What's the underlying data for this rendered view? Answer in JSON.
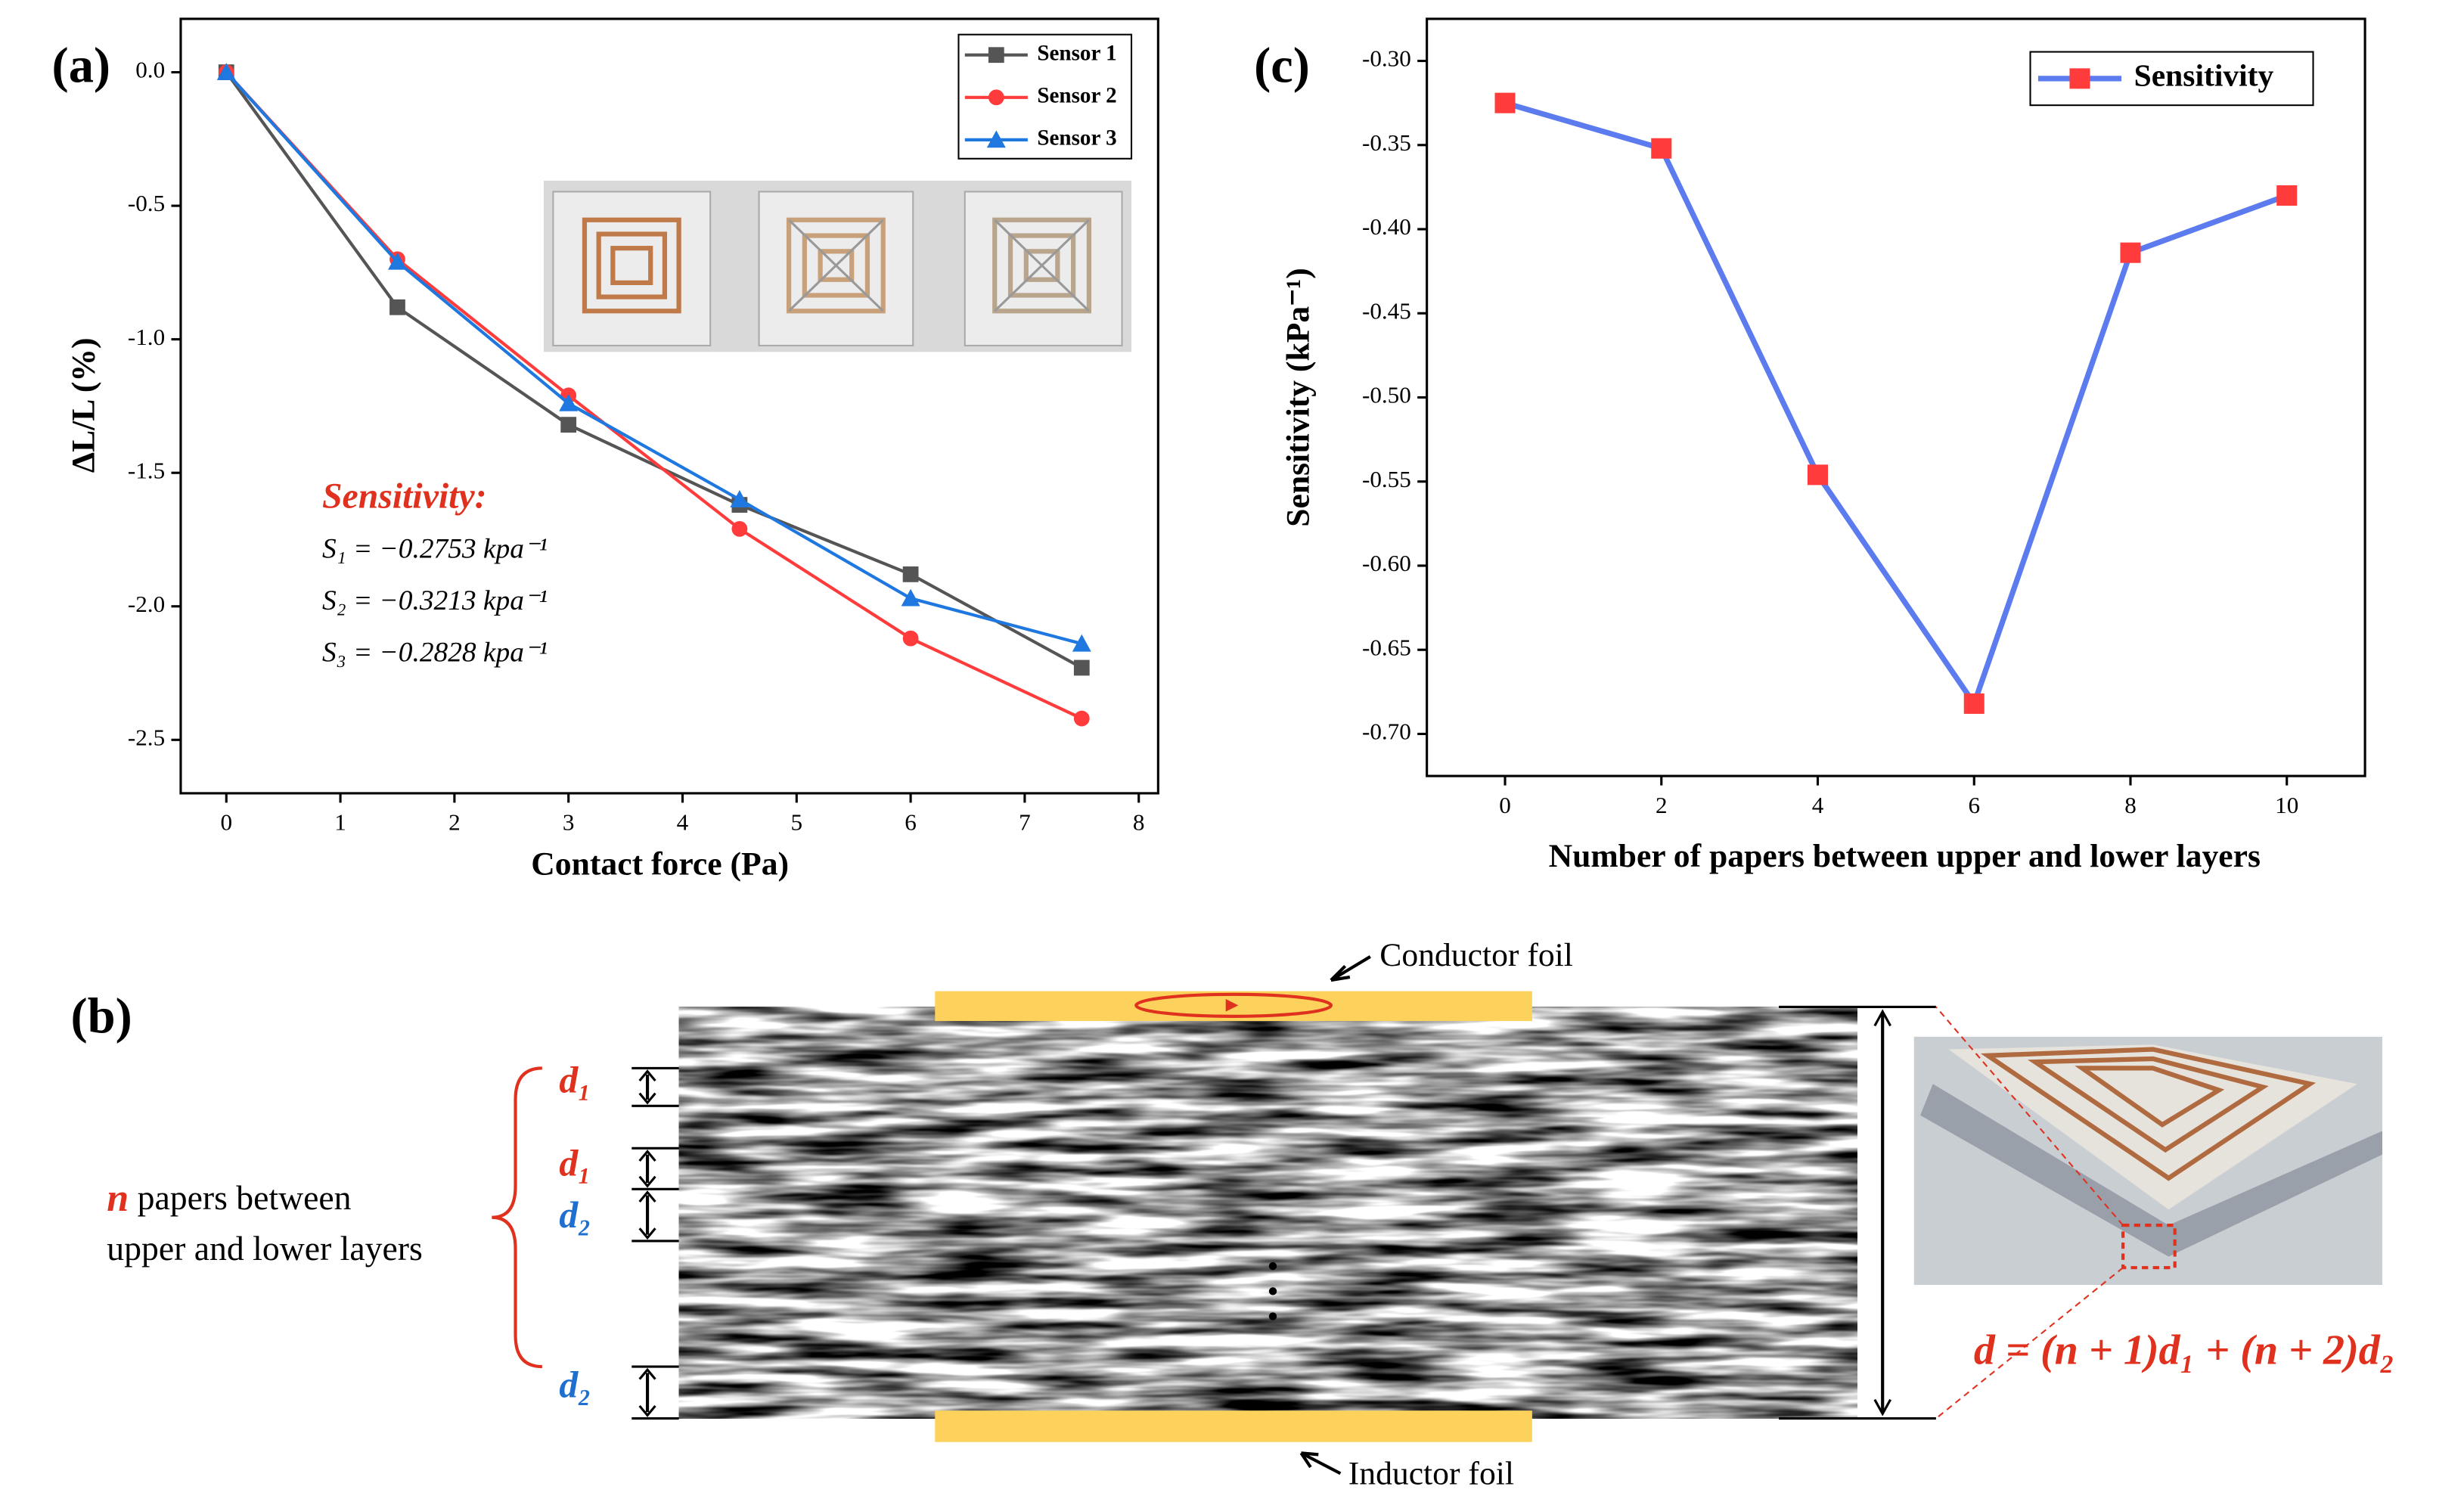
{
  "chart_data": [
    {
      "type": "line",
      "panel_label": "(a)",
      "x_label": "Contact force (Pa)",
      "y_label": "ΔL/L (%)",
      "x": [
        0,
        1.5,
        3,
        4.5,
        6,
        7.5
      ],
      "xlim": [
        -0.4,
        8.17
      ],
      "xticks": [
        0,
        1,
        2,
        3,
        4,
        5,
        6,
        7,
        8
      ],
      "ylim": [
        -2.7,
        0.2
      ],
      "yticks": [
        {
          "value": 0,
          "label": "0.0"
        },
        -0.5,
        {
          "value": -1,
          "label": "-1.0"
        },
        -1.5,
        {
          "value": -2,
          "label": "-2.0"
        },
        -2.5
      ],
      "legend": "upper right",
      "series": [
        {
          "name": "Sensor 1",
          "color": "#555555",
          "marker": "square",
          "values": [
            0,
            -0.88,
            -1.32,
            -1.62,
            -1.88,
            -2.23
          ]
        },
        {
          "name": "Sensor 2",
          "color": "#ff3b3b",
          "marker": "circle",
          "values": [
            0,
            -0.7,
            -1.21,
            -1.71,
            -2.12,
            -2.42
          ]
        },
        {
          "name": "Sensor 3",
          "color": "#1f78e0",
          "marker": "triangle",
          "values": [
            0,
            -0.71,
            -1.24,
            -1.6,
            -1.97,
            -2.14
          ]
        }
      ],
      "annotation": {
        "title": "Sensitivity:",
        "lines": [
          "S₁ = −0.2753 kpa⁻¹",
          "S₂ = −0.3213 kpa⁻¹",
          "S₃ = −0.2828 kpa⁻¹"
        ]
      }
    },
    {
      "type": "line",
      "panel_label": "(c)",
      "x_label": "Number of papers between upper and lower layers",
      "y_label": "Sensitivity (kPa⁻¹)",
      "x": [
        0,
        2,
        4,
        6,
        8,
        10
      ],
      "xlim": [
        -1,
        11
      ],
      "xticks": [
        0,
        2,
        4,
        6,
        8,
        10
      ],
      "ylim": [
        -0.725,
        -0.275
      ],
      "yticks": [
        {
          "value": -0.3,
          "label": "-0.30"
        },
        -0.35,
        {
          "value": -0.4,
          "label": "-0.40"
        },
        -0.45,
        {
          "value": -0.5,
          "label": "-0.50"
        },
        -0.55,
        {
          "value": -0.6,
          "label": "-0.60"
        },
        -0.65,
        {
          "value": -0.7,
          "label": "-0.70"
        }
      ],
      "legend": "upper right",
      "series": [
        {
          "name": "Sensitivity",
          "color": "#5b7bef",
          "marker": "square",
          "marker_color": "#ff3b3b",
          "values": [
            -0.325,
            -0.352,
            -0.546,
            -0.682,
            -0.414,
            -0.38
          ]
        }
      ]
    }
  ],
  "diagram": {
    "panel_label": "(b)",
    "top_label": "Conductor foil",
    "bottom_label": "Inductor foil",
    "layer_label": {
      "n": "n",
      "line1": " papers between",
      "line2": "upper and lower layers"
    },
    "gaps": [
      "d₁",
      "d₁",
      "d₂",
      "d₂"
    ],
    "formula": "d = (n + 1)d₁ + (n + 2)d₂"
  }
}
